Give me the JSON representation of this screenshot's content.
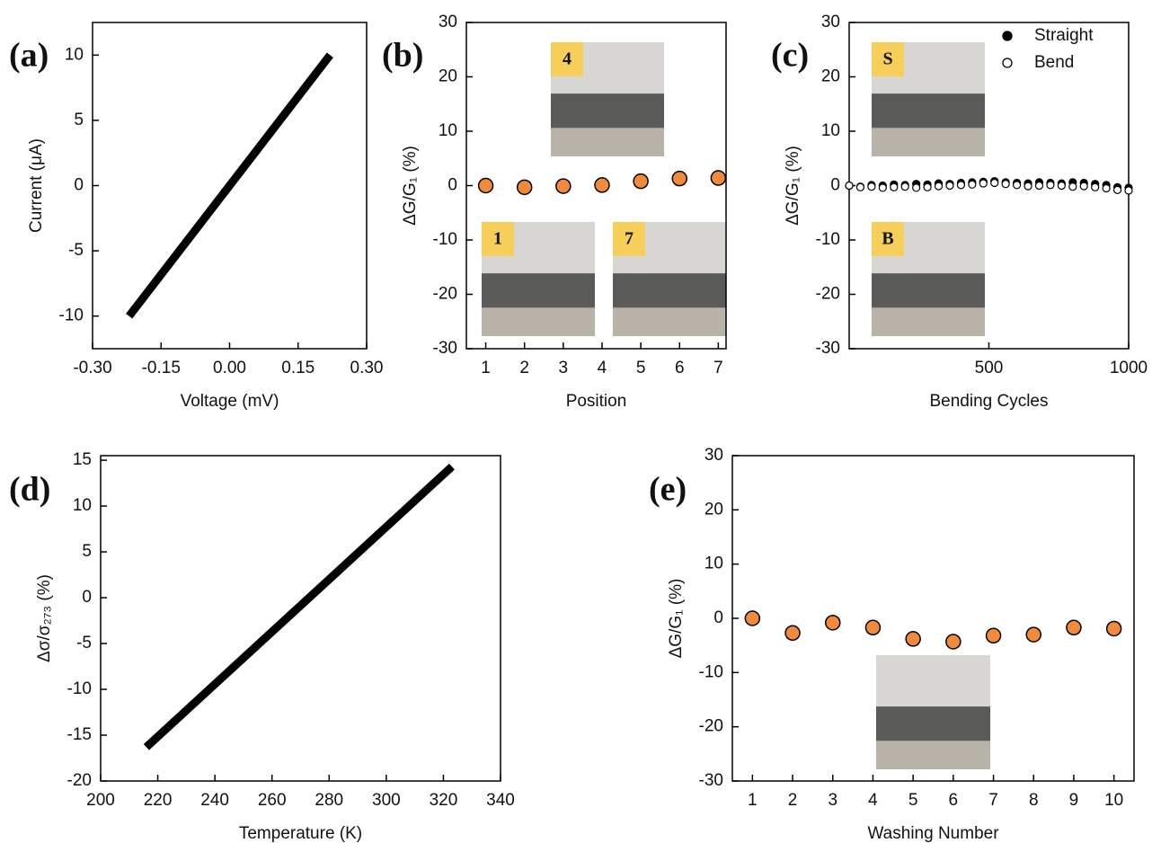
{
  "chart_data": [
    {
      "type": "line",
      "panel_label": "(a)",
      "x_label": "Voltage (mV)",
      "y_label": "Current (μA)",
      "x": [
        -0.22,
        0.22
      ],
      "values": [
        -10,
        10
      ],
      "color": "#000000",
      "xlim": [
        -0.3,
        0.3
      ],
      "xticks": [
        {
          "value": -0.3,
          "label": "-0.30"
        },
        {
          "value": -0.15,
          "label": "-0.15"
        },
        {
          "value": 0,
          "label": "0.00"
        },
        {
          "value": 0.15,
          "label": "0.15"
        },
        {
          "value": 0.3,
          "label": "0.30"
        }
      ],
      "ylim": [
        -12.5,
        12.5
      ],
      "yticks": [
        -10,
        -5,
        0,
        5,
        10
      ]
    },
    {
      "type": "scatter",
      "panel_label": "(b)",
      "x_label": "Position",
      "y_label": "ΔG/G₁ (%)",
      "x": [
        1,
        2,
        3,
        4,
        5,
        6,
        7
      ],
      "values": [
        0,
        -0.3,
        -0.1,
        0.1,
        0.8,
        1.3,
        1.4
      ],
      "color": "#f28a3c",
      "xlim": [
        0.5,
        7.2
      ],
      "xticks": [
        1,
        2,
        3,
        4,
        5,
        6,
        7
      ],
      "ylim": [
        -30,
        30
      ],
      "yticks": [
        -30,
        -20,
        -10,
        0,
        10,
        20,
        30
      ],
      "insets": [
        "4",
        "1",
        "7"
      ]
    },
    {
      "type": "scatter",
      "panel_label": "(c)",
      "x_label": "Bending Cycles",
      "y_label": "ΔG/G₁ (%)",
      "x": [
        0,
        40,
        80,
        120,
        160,
        200,
        240,
        280,
        320,
        360,
        400,
        440,
        480,
        520,
        560,
        600,
        640,
        680,
        720,
        760,
        800,
        840,
        880,
        920,
        960,
        1000
      ],
      "series": [
        {
          "name": "Straight",
          "color": "#000000",
          "filled": true,
          "values": [
            0,
            -0.2,
            0.1,
            0,
            0.2,
            0.1,
            0.3,
            0.2,
            0.4,
            0.3,
            0.5,
            0.6,
            0.7,
            0.8,
            0.6,
            0.5,
            0.4,
            0.6,
            0.5,
            0.4,
            0.6,
            0.5,
            0.3,
            0.1,
            -0.3,
            -0.4
          ]
        },
        {
          "name": "Bend",
          "color": "#000000",
          "filled": false,
          "values": [
            0,
            -0.3,
            -0.2,
            -0.4,
            -0.3,
            -0.2,
            -0.4,
            -0.3,
            -0.1,
            0,
            0.1,
            0.2,
            0.4,
            0.5,
            0.3,
            0.1,
            -0.1,
            0,
            0.1,
            0,
            -0.2,
            -0.1,
            -0.3,
            -0.5,
            -0.8,
            -0.9
          ]
        }
      ],
      "legend": "upper right",
      "xlim": [
        0,
        1000
      ],
      "xticks": [
        500,
        1000
      ],
      "ylim": [
        -30,
        30
      ],
      "yticks": [
        -30,
        -20,
        -10,
        0,
        10,
        20,
        30
      ],
      "insets": [
        "S",
        "B"
      ]
    },
    {
      "type": "line",
      "panel_label": "(d)",
      "x_label": "Temperature (K)",
      "y_label": "Δσ/σ₂₇₃ (%)",
      "x": [
        216,
        323
      ],
      "values": [
        -16.3,
        14.3
      ],
      "color": "#000000",
      "xlim": [
        200,
        340
      ],
      "xticks": [
        200,
        220,
        240,
        260,
        280,
        300,
        320,
        340
      ],
      "ylim": [
        -20,
        15.5
      ],
      "yticks": [
        -20,
        -15,
        -10,
        -5,
        0,
        5,
        10,
        15
      ]
    },
    {
      "type": "scatter",
      "panel_label": "(e)",
      "x_label": "Washing Number",
      "y_label": "ΔG/G₁ (%)",
      "x": [
        1,
        2,
        3,
        4,
        5,
        6,
        7,
        8,
        9,
        10
      ],
      "values": [
        0,
        -2.7,
        -0.8,
        -1.7,
        -3.8,
        -4.3,
        -3.2,
        -3.0,
        -1.7,
        -1.9
      ],
      "color": "#f28a3c",
      "xlim": [
        0.5,
        10.5
      ],
      "xticks": [
        1,
        2,
        3,
        4,
        5,
        6,
        7,
        8,
        9,
        10
      ],
      "ylim": [
        -30,
        30
      ],
      "yticks": [
        -30,
        -20,
        -10,
        0,
        10,
        20,
        30
      ]
    }
  ]
}
